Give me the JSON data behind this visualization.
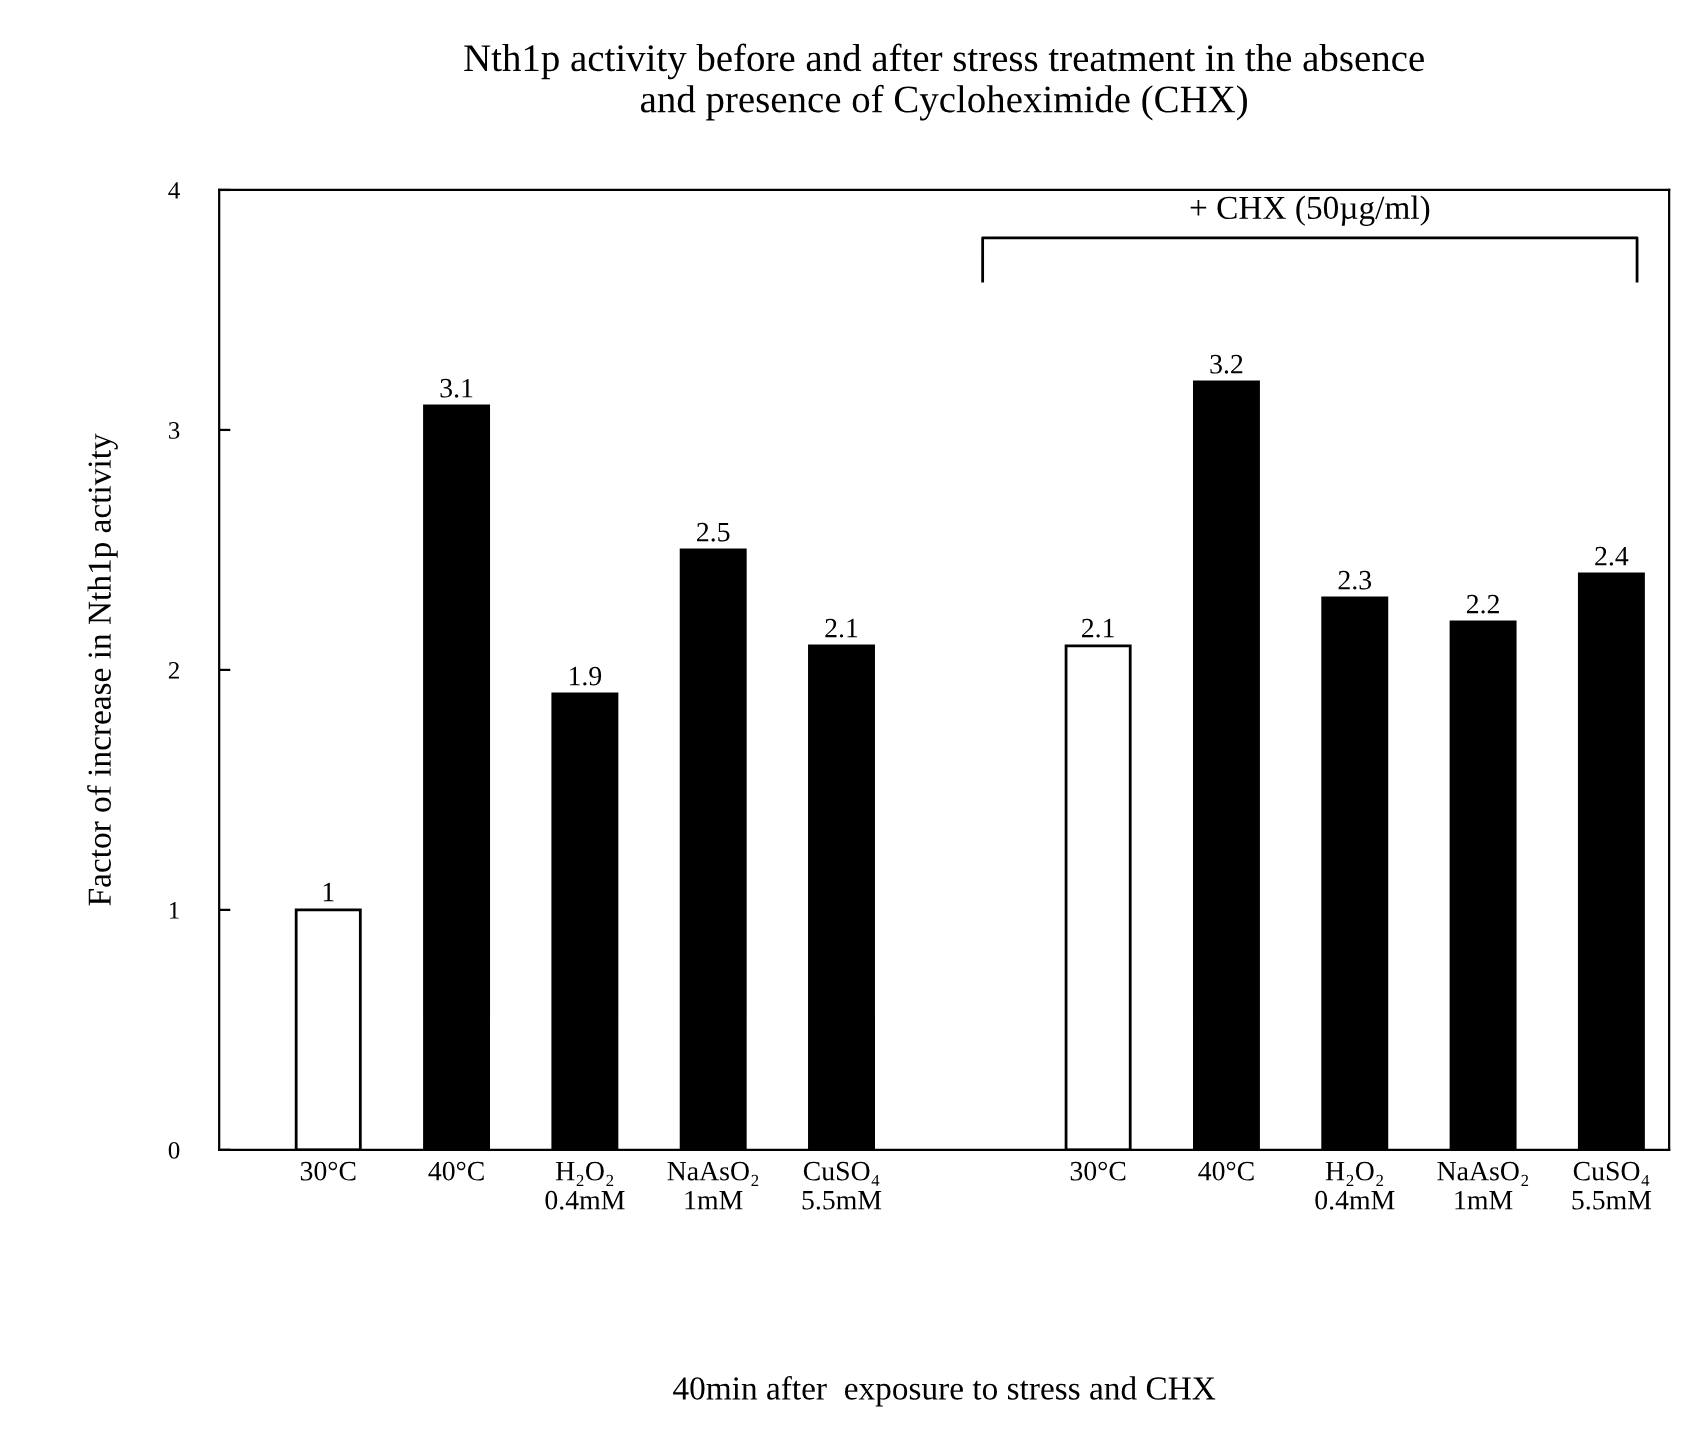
{
  "chart_data": {
    "type": "bar",
    "title": "Nth1p activity before and after stress treatment in the absence\nand presence of Cycloheximide (CHX)",
    "ylabel": "Factor of increase in Nth1p activity",
    "categories": [
      "30°C",
      "40°C",
      "H₂O₂\n0.4mM",
      "NaAsO₂\n1mM",
      "CuSO₄\n5.5mM",
      null,
      "30°C",
      "40°C",
      "H₂O₂\n0.4mM",
      "NaAsO₂\n1mM",
      "CuSO₄\n5.5mM"
    ],
    "values": [
      1,
      3.1,
      1.9,
      2.5,
      2.1,
      null,
      2.1,
      3.2,
      2.3,
      2.2,
      2.4
    ],
    "colors": [
      "#ffffff",
      "#000000",
      "#000000",
      "#000000",
      "#000000",
      "#000000",
      "#ffffff",
      "#000000",
      "#000000",
      "#000000",
      "#000000"
    ],
    "ylim": [
      0,
      4
    ],
    "yticks": [
      0,
      1,
      2,
      3,
      4
    ],
    "grid": false,
    "legend": false,
    "data_labels": true,
    "annotations": [
      "+ CHX (50µg/ml)",
      "40min after  exposure to stress and CHX"
    ]
  }
}
